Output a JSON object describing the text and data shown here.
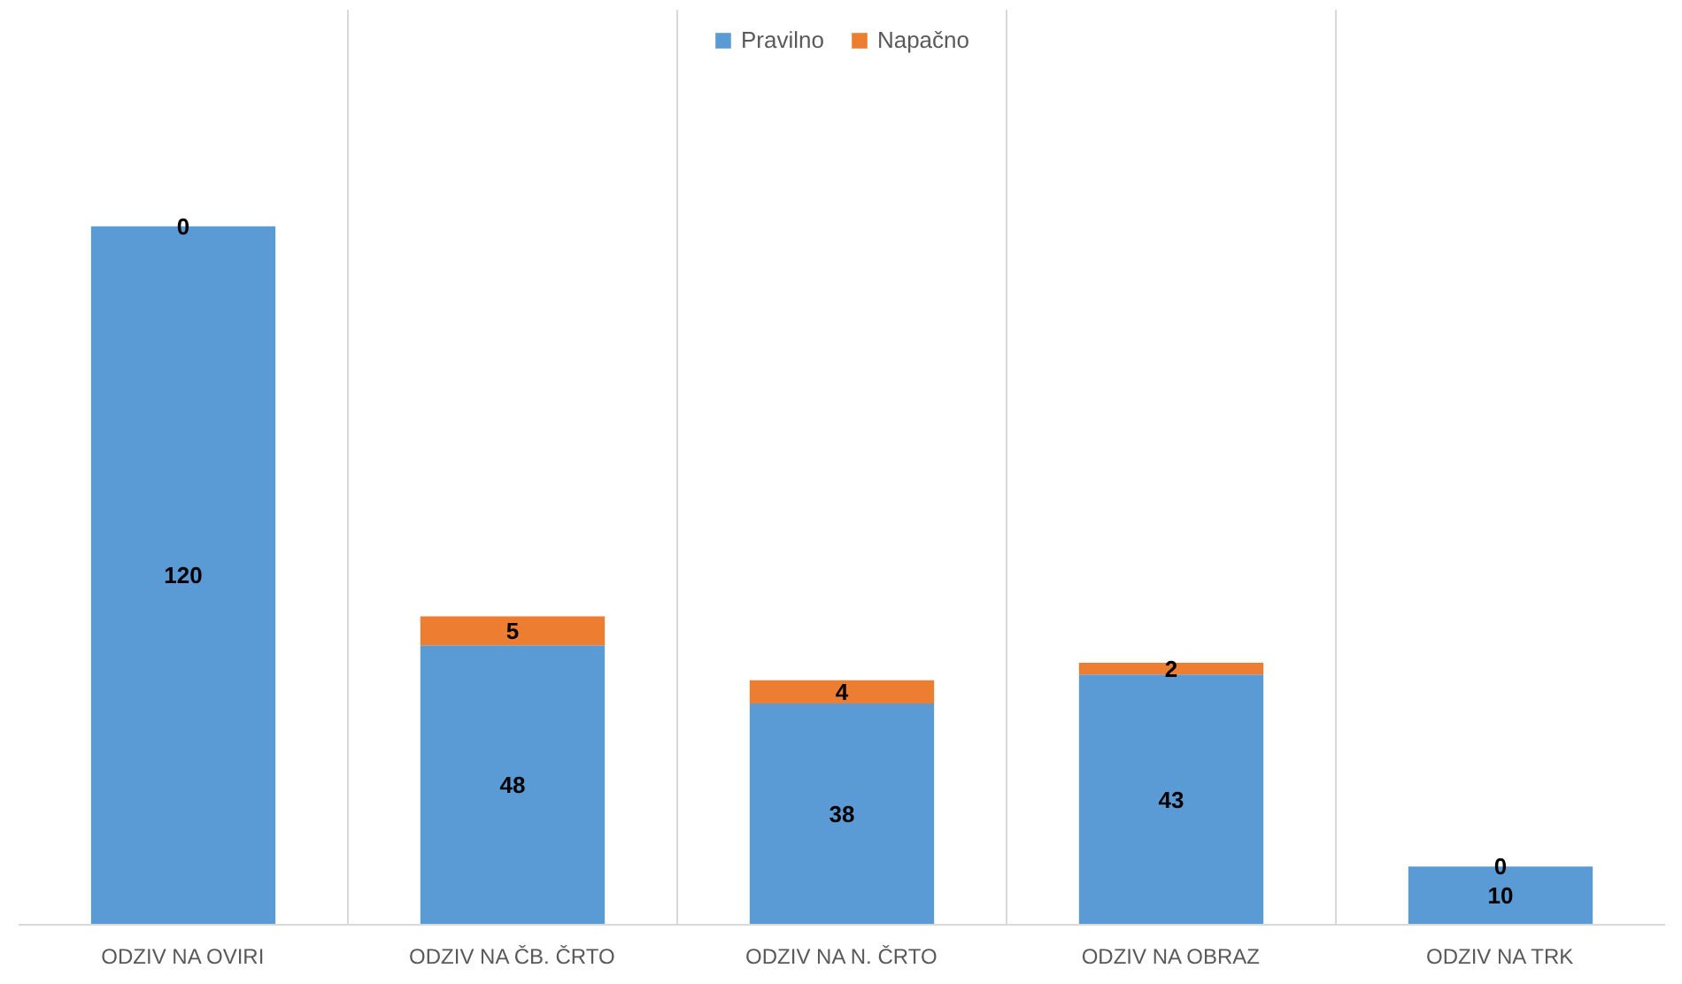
{
  "chart_data": {
    "type": "bar",
    "stacked": true,
    "categories": [
      "ODZIV NA OVIRI",
      "ODZIV NA ČB. ČRTO",
      "ODZIV NA N. ČRTO",
      "ODZIV NA OBRAZ",
      "ODZIV NA TRK"
    ],
    "series": [
      {
        "name": "Pravilno",
        "color": "#5b9bd5",
        "values": [
          120,
          48,
          38,
          43,
          10
        ]
      },
      {
        "name": "Napačno",
        "color": "#ed7d31",
        "values": [
          0,
          5,
          4,
          2,
          0
        ]
      }
    ],
    "data_labels": true,
    "legend": "top",
    "grid": "x"
  }
}
